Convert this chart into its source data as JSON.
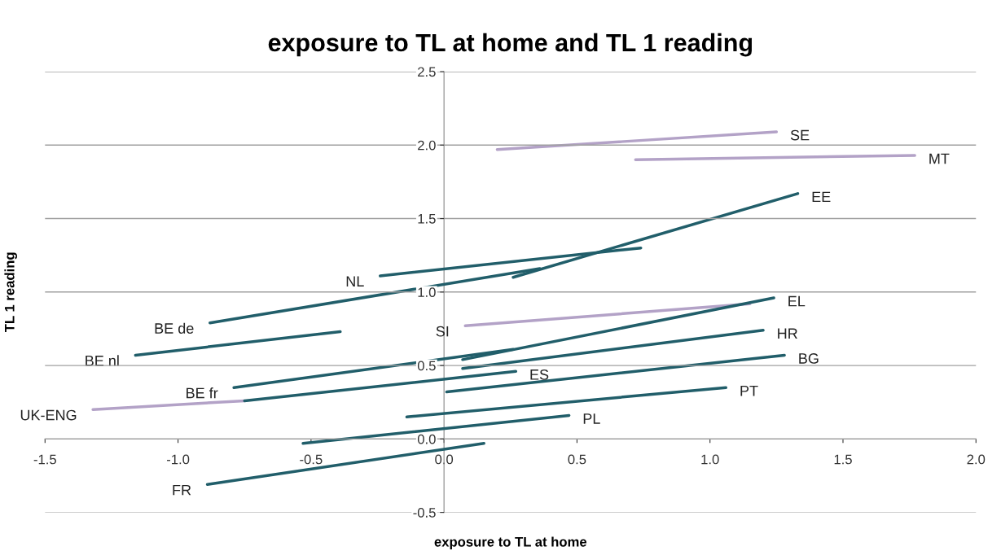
{
  "chart_data": {
    "type": "line",
    "title": "exposure to TL at home and TL 1 reading",
    "xlabel": "exposure to TL at home",
    "ylabel": "TL 1 reading",
    "xlim": [
      -1.5,
      2.0
    ],
    "xticks": [
      {
        "value": -1.5,
        "label": "-1.5"
      },
      {
        "value": -1.0,
        "label": "-1.0"
      },
      {
        "value": -0.5,
        "label": "-0.5"
      },
      {
        "value": 0,
        "label": "0.0"
      },
      {
        "value": 0.5,
        "label": "0.5"
      },
      {
        "value": 1.0,
        "label": "1.0"
      },
      {
        "value": 1.5,
        "label": "1.5"
      },
      {
        "value": 2.0,
        "label": "2.0"
      }
    ],
    "ylim": [
      -0.5,
      2.5
    ],
    "yticks": [
      {
        "value": -0.5,
        "label": "-0.5"
      },
      {
        "value": 0,
        "label": "0.0"
      },
      {
        "value": 0.5,
        "label": "0.5"
      },
      {
        "value": 1.0,
        "label": "1.0"
      },
      {
        "value": 1.5,
        "label": "1.5"
      },
      {
        "value": 2.0,
        "label": "2.0"
      },
      {
        "value": 2.5,
        "label": "2.5"
      }
    ],
    "grid": "y",
    "marker": "none",
    "line_style": "solid",
    "series": [
      {
        "color": "#b3a2c7",
        "x": [
          0.2,
          1.25
        ],
        "values": [
          1.97,
          2.09
        ]
      },
      {
        "color": "#b3a2c7",
        "x": [
          0.72,
          1.77
        ],
        "values": [
          1.9,
          1.93
        ]
      },
      {
        "color": "#215e6a",
        "x": [
          0.26,
          1.33
        ],
        "values": [
          1.1,
          1.67
        ]
      },
      {
        "color": "#215e6a",
        "x": [
          -0.24,
          0.74
        ],
        "values": [
          1.11,
          1.3
        ]
      },
      {
        "color": "#215e6a",
        "x": [
          -0.88,
          0.36
        ],
        "values": [
          0.79,
          1.16
        ]
      },
      {
        "color": "#215e6a",
        "x": [
          -1.16,
          -0.39
        ],
        "values": [
          0.57,
          0.73
        ]
      },
      {
        "color": "#b3a2c7",
        "x": [
          0.08,
          1.15
        ],
        "values": [
          0.77,
          0.92
        ]
      },
      {
        "color": "#215e6a",
        "x": [
          -0.79,
          0.26
        ],
        "values": [
          0.35,
          0.61
        ]
      },
      {
        "color": "#215e6a",
        "x": [
          0.07,
          1.24
        ],
        "values": [
          0.54,
          0.96
        ]
      },
      {
        "color": "#215e6a",
        "x": [
          0.07,
          1.2
        ],
        "values": [
          0.48,
          0.74
        ]
      },
      {
        "color": "#b3a2c7",
        "x": [
          -1.32,
          -0.75
        ],
        "values": [
          0.2,
          0.26
        ]
      },
      {
        "color": "#215e6a",
        "x": [
          -0.75,
          0.27
        ],
        "values": [
          0.26,
          0.46
        ]
      },
      {
        "color": "#215e6a",
        "x": [
          0.01,
          1.28
        ],
        "values": [
          0.32,
          0.57
        ]
      },
      {
        "color": "#215e6a",
        "x": [
          -0.14,
          1.06
        ],
        "values": [
          0.15,
          0.35
        ]
      },
      {
        "color": "#215e6a",
        "x": [
          -0.53,
          0.47
        ],
        "values": [
          -0.03,
          0.16
        ]
      },
      {
        "color": "#215e6a",
        "x": [
          -0.89,
          0.15
        ],
        "values": [
          -0.31,
          -0.03
        ]
      }
    ],
    "annotations": [
      {
        "text": "SE",
        "x": 1.25,
        "y": 2.09
      },
      {
        "text": "MT",
        "x": 1.77,
        "y": 1.93
      },
      {
        "text": "EE",
        "x": 1.33,
        "y": 1.67
      },
      {
        "text": "NL",
        "x": -0.24,
        "y": 1.11
      },
      {
        "text": "BE de",
        "x": -0.88,
        "y": 0.79
      },
      {
        "text": "BE nl",
        "x": -1.16,
        "y": 0.57
      },
      {
        "text": "SI",
        "x": 0.08,
        "y": 0.77
      },
      {
        "text": "EL",
        "x": 1.24,
        "y": 0.96
      },
      {
        "text": "HR",
        "x": 1.2,
        "y": 0.74
      },
      {
        "text": "BE fr",
        "x": -0.79,
        "y": 0.35
      },
      {
        "text": "BG",
        "x": 1.28,
        "y": 0.57
      },
      {
        "text": "ES",
        "x": 0.27,
        "y": 0.46
      },
      {
        "text": "PT",
        "x": 1.06,
        "y": 0.35
      },
      {
        "text": "UK-ENG",
        "x": -1.32,
        "y": 0.2
      },
      {
        "text": "PL",
        "x": 0.47,
        "y": 0.16
      },
      {
        "text": "FR",
        "x": -0.89,
        "y": -0.31
      }
    ]
  }
}
